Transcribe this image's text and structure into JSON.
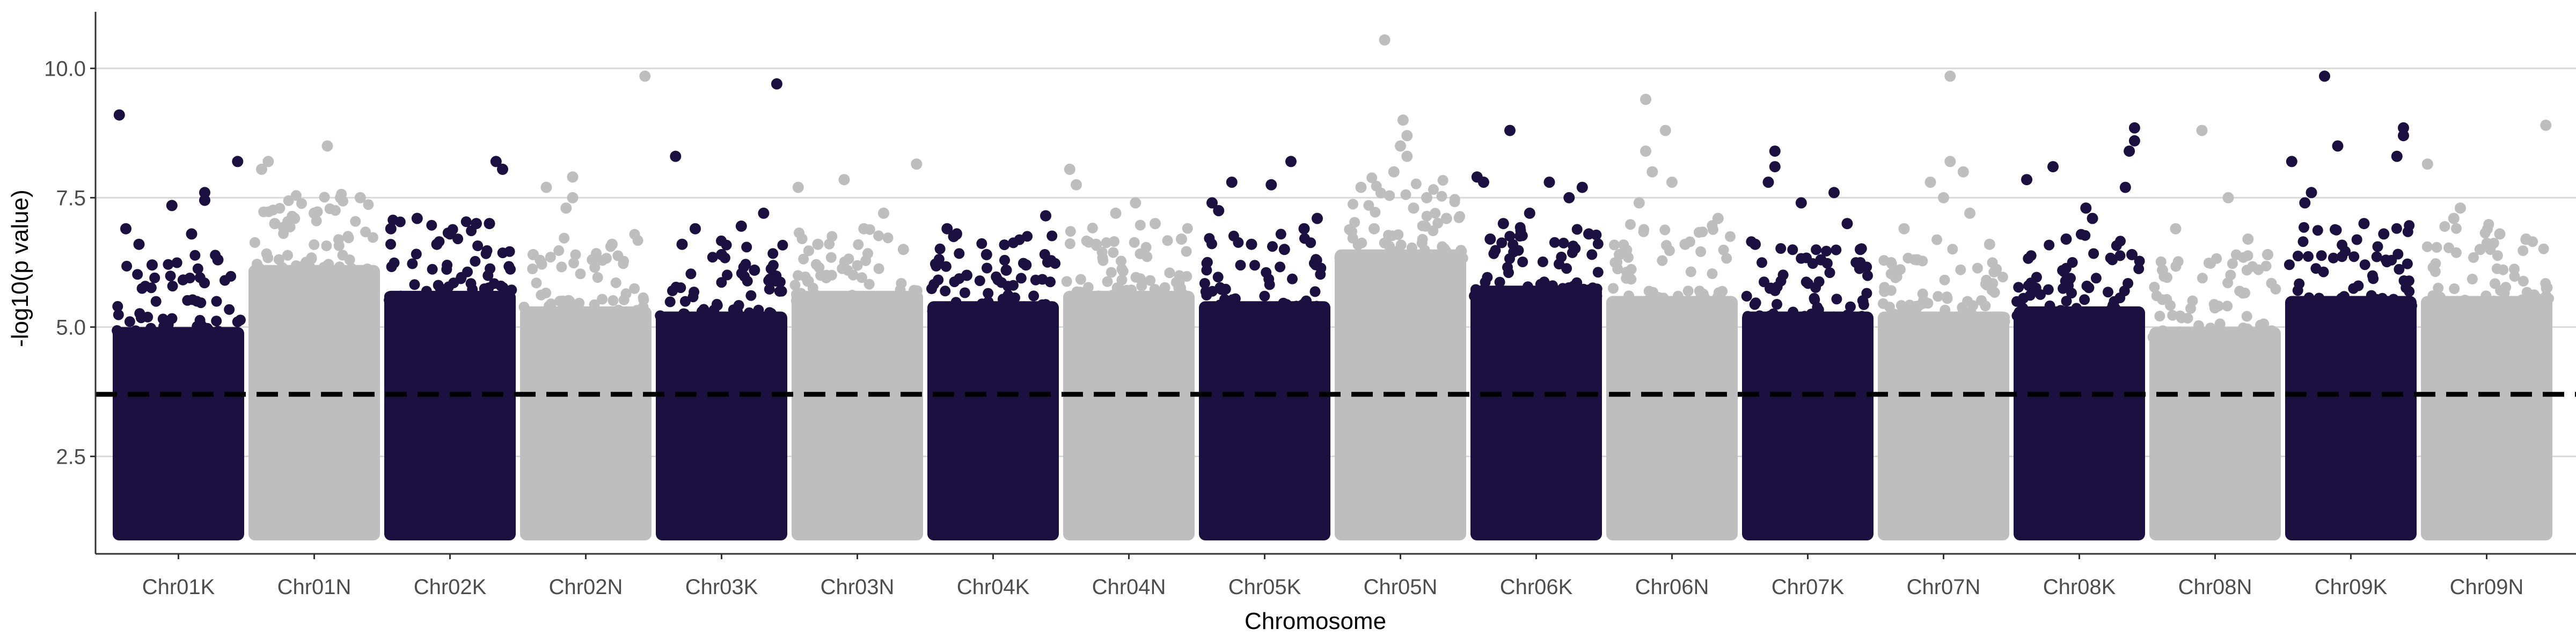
{
  "chart_data": {
    "type": "scatter",
    "title": "",
    "xlabel": "Chromosome",
    "ylabel": "-log10(p value)",
    "categories": [
      "Chr01K",
      "Chr01N",
      "Chr02K",
      "Chr02N",
      "Chr03K",
      "Chr03N",
      "Chr04K",
      "Chr04N",
      "Chr05K",
      "Chr05N",
      "Chr06K",
      "Chr06N",
      "Chr07K",
      "Chr07N",
      "Chr08K",
      "Chr08N",
      "Chr09K",
      "Chr09N"
    ],
    "yticks": [
      "2.5",
      "5.0",
      "7.5",
      "10.0"
    ],
    "ylim": [
      0.15,
      11.0
    ],
    "threshold": 3.7,
    "grid": "horizontal-major",
    "legend": "none",
    "colors": {
      "dark": "#1c1040",
      "light": "#bebebe",
      "grid": "#d9d9d9",
      "axis": "#333333",
      "threshold": "#000000"
    },
    "series": [
      {
        "chromosome": "Chr01K",
        "color": "dark",
        "base_top": 5.0,
        "notable": [
          [
            0.05,
            9.1
          ],
          [
            0.95,
            8.2
          ],
          [
            0.7,
            7.6
          ],
          [
            0.7,
            7.45
          ],
          [
            0.45,
            7.35
          ],
          [
            0.1,
            6.9
          ],
          [
            0.6,
            6.8
          ],
          [
            0.2,
            6.6
          ],
          [
            0.8,
            6.3
          ],
          [
            0.3,
            6.2
          ]
        ]
      },
      {
        "chromosome": "Chr01N",
        "color": "light",
        "base_top": 6.2,
        "notable": [
          [
            0.6,
            8.5
          ],
          [
            0.15,
            8.2
          ],
          [
            0.1,
            8.05
          ],
          [
            0.7,
            7.5
          ],
          [
            0.85,
            7.5
          ],
          [
            0.5,
            7.2
          ],
          [
            0.35,
            7.1
          ],
          [
            0.2,
            7.0
          ]
        ]
      },
      {
        "chromosome": "Chr02K",
        "color": "dark",
        "base_top": 5.7,
        "notable": [
          [
            0.85,
            8.2
          ],
          [
            0.9,
            8.05
          ],
          [
            0.25,
            7.1
          ],
          [
            0.7,
            7.0
          ],
          [
            0.8,
            7.0
          ],
          [
            0.05,
            6.9
          ],
          [
            0.5,
            6.8
          ],
          [
            0.4,
            6.6
          ]
        ]
      },
      {
        "chromosome": "Chr02N",
        "color": "light",
        "base_top": 5.4,
        "notable": [
          [
            0.95,
            9.85
          ],
          [
            0.4,
            7.9
          ],
          [
            0.2,
            7.7
          ],
          [
            0.4,
            7.5
          ],
          [
            0.35,
            7.3
          ],
          [
            0.7,
            6.6
          ],
          [
            0.1,
            6.4
          ],
          [
            0.55,
            6.3
          ]
        ]
      },
      {
        "chromosome": "Chr03K",
        "color": "dark",
        "base_top": 5.3,
        "notable": [
          [
            0.92,
            9.7
          ],
          [
            0.15,
            8.3
          ],
          [
            0.82,
            7.2
          ],
          [
            0.65,
            6.95
          ],
          [
            0.3,
            6.9
          ],
          [
            0.2,
            6.6
          ],
          [
            0.5,
            6.4
          ],
          [
            0.75,
            6.1
          ]
        ]
      },
      {
        "chromosome": "Chr03N",
        "color": "light",
        "base_top": 5.7,
        "notable": [
          [
            0.95,
            8.15
          ],
          [
            0.4,
            7.85
          ],
          [
            0.05,
            7.7
          ],
          [
            0.7,
            7.2
          ],
          [
            0.55,
            6.9
          ],
          [
            0.2,
            6.6
          ],
          [
            0.85,
            6.5
          ]
        ]
      },
      {
        "chromosome": "Chr04K",
        "color": "dark",
        "base_top": 5.5,
        "notable": [
          [
            0.9,
            7.15
          ],
          [
            0.15,
            6.9
          ],
          [
            0.2,
            6.75
          ],
          [
            0.45,
            6.4
          ],
          [
            0.75,
            6.2
          ],
          [
            0.6,
            6.1
          ],
          [
            0.3,
            6.0
          ]
        ]
      },
      {
        "chromosome": "Chr04N",
        "color": "light",
        "base_top": 5.7,
        "notable": [
          [
            0.05,
            8.05
          ],
          [
            0.1,
            7.75
          ],
          [
            0.55,
            7.4
          ],
          [
            0.4,
            7.2
          ],
          [
            0.7,
            7.0
          ],
          [
            0.9,
            6.7
          ],
          [
            0.25,
            6.6
          ]
        ]
      },
      {
        "chromosome": "Chr05K",
        "color": "dark",
        "base_top": 5.5,
        "notable": [
          [
            0.7,
            8.2
          ],
          [
            0.25,
            7.8
          ],
          [
            0.55,
            7.75
          ],
          [
            0.1,
            7.4
          ],
          [
            0.15,
            7.25
          ],
          [
            0.9,
            7.1
          ],
          [
            0.8,
            6.9
          ],
          [
            0.4,
            6.6
          ],
          [
            0.65,
            6.5
          ]
        ]
      },
      {
        "chromosome": "Chr05N",
        "color": "light",
        "base_top": 6.5,
        "notable": [
          [
            0.38,
            10.55
          ],
          [
            0.52,
            9.0
          ],
          [
            0.55,
            8.7
          ],
          [
            0.5,
            8.5
          ],
          [
            0.55,
            8.3
          ],
          [
            0.45,
            8.0
          ],
          [
            0.2,
            7.7
          ],
          [
            0.7,
            7.5
          ],
          [
            0.6,
            7.3
          ],
          [
            0.85,
            7.1
          ],
          [
            0.3,
            6.9
          ]
        ]
      },
      {
        "chromosome": "Chr06K",
        "color": "dark",
        "base_top": 5.8,
        "notable": [
          [
            0.3,
            8.8
          ],
          [
            0.05,
            7.9
          ],
          [
            0.1,
            7.8
          ],
          [
            0.6,
            7.8
          ],
          [
            0.85,
            7.7
          ],
          [
            0.75,
            7.5
          ],
          [
            0.45,
            7.2
          ],
          [
            0.25,
            7.0
          ],
          [
            0.9,
            6.8
          ],
          [
            0.15,
            6.7
          ]
        ]
      },
      {
        "chromosome": "Chr06N",
        "color": "light",
        "base_top": 5.6,
        "notable": [
          [
            0.3,
            9.4
          ],
          [
            0.45,
            8.8
          ],
          [
            0.3,
            8.4
          ],
          [
            0.35,
            8.0
          ],
          [
            0.5,
            7.8
          ],
          [
            0.25,
            7.4
          ],
          [
            0.85,
            7.1
          ],
          [
            0.6,
            6.6
          ],
          [
            0.1,
            6.4
          ]
        ]
      },
      {
        "chromosome": "Chr07K",
        "color": "dark",
        "base_top": 5.3,
        "notable": [
          [
            0.25,
            8.4
          ],
          [
            0.25,
            8.1
          ],
          [
            0.2,
            7.8
          ],
          [
            0.7,
            7.6
          ],
          [
            0.45,
            7.4
          ],
          [
            0.8,
            7.0
          ],
          [
            0.1,
            6.6
          ],
          [
            0.9,
            6.5
          ],
          [
            0.6,
            6.3
          ]
        ]
      },
      {
        "chromosome": "Chr07N",
        "color": "light",
        "base_top": 5.3,
        "notable": [
          [
            0.55,
            9.85
          ],
          [
            0.55,
            8.2
          ],
          [
            0.65,
            8.0
          ],
          [
            0.4,
            7.8
          ],
          [
            0.5,
            7.5
          ],
          [
            0.7,
            7.2
          ],
          [
            0.2,
            6.9
          ],
          [
            0.85,
            6.6
          ],
          [
            0.3,
            6.3
          ]
        ]
      },
      {
        "chromosome": "Chr08K",
        "color": "dark",
        "base_top": 5.4,
        "notable": [
          [
            0.92,
            8.85
          ],
          [
            0.92,
            8.6
          ],
          [
            0.88,
            8.4
          ],
          [
            0.3,
            8.1
          ],
          [
            0.1,
            7.85
          ],
          [
            0.85,
            7.7
          ],
          [
            0.55,
            7.3
          ],
          [
            0.6,
            7.1
          ],
          [
            0.4,
            6.7
          ],
          [
            0.9,
            6.4
          ]
        ]
      },
      {
        "chromosome": "Chr08N",
        "color": "light",
        "base_top": 5.0,
        "notable": [
          [
            0.4,
            8.8
          ],
          [
            0.6,
            7.5
          ],
          [
            0.2,
            6.9
          ],
          [
            0.75,
            6.7
          ],
          [
            0.9,
            6.4
          ],
          [
            0.1,
            6.1
          ]
        ]
      },
      {
        "chromosome": "Chr09K",
        "color": "dark",
        "base_top": 5.6,
        "notable": [
          [
            0.3,
            9.85
          ],
          [
            0.05,
            8.2
          ],
          [
            0.4,
            8.5
          ],
          [
            0.9,
            8.85
          ],
          [
            0.9,
            8.7
          ],
          [
            0.85,
            8.3
          ],
          [
            0.2,
            7.6
          ],
          [
            0.15,
            7.4
          ],
          [
            0.6,
            7.0
          ],
          [
            0.75,
            6.8
          ]
        ]
      },
      {
        "chromosome": "Chr09N",
        "color": "light",
        "base_top": 5.6,
        "notable": [
          [
            0.95,
            8.9
          ],
          [
            0.05,
            8.15
          ],
          [
            0.3,
            7.3
          ],
          [
            0.25,
            7.1
          ],
          [
            0.6,
            6.8
          ],
          [
            0.8,
            6.7
          ],
          [
            0.45,
            6.5
          ]
        ]
      }
    ]
  }
}
